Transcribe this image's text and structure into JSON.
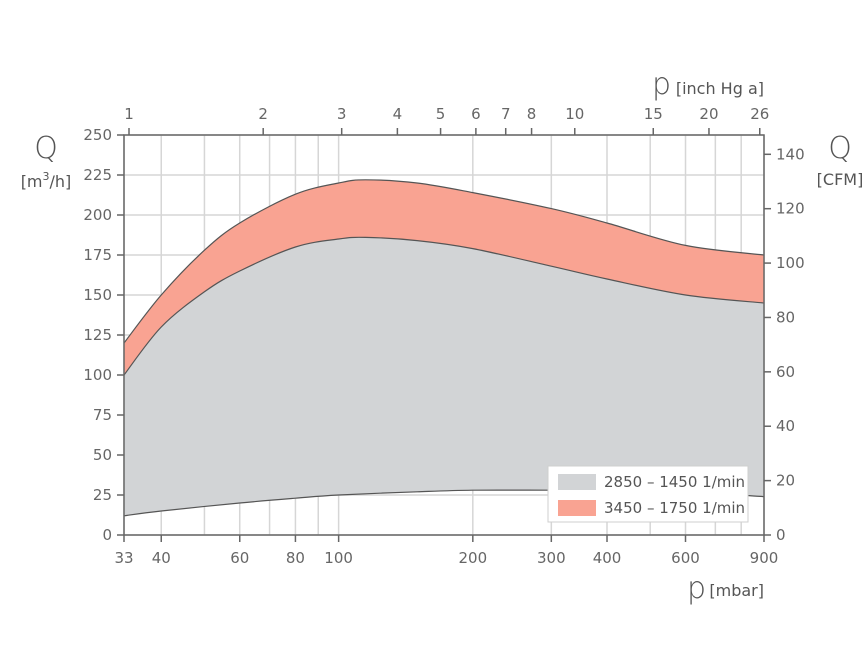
{
  "chart_data": {
    "type": "area",
    "x_axis_bottom": {
      "symbol": "p",
      "unit": "[mbar]",
      "scale": "log",
      "range": [
        33,
        900
      ],
      "ticks": [
        "33",
        "40",
        "60",
        "80",
        "100",
        "200",
        "300",
        "400",
        "600",
        "900"
      ],
      "gridlines": [
        33,
        40,
        50,
        60,
        70,
        80,
        90,
        100,
        200,
        300,
        400,
        500,
        600,
        700,
        800,
        900
      ]
    },
    "x_axis_top": {
      "symbol": "p",
      "unit": "[inch Hg a]",
      "ticks": [
        "1",
        "2",
        "3",
        "4",
        "5",
        "6",
        "7",
        "8",
        "10",
        "15",
        "20",
        "26"
      ]
    },
    "y_axis_left": {
      "symbol": "Q",
      "unit_prefix": "[m",
      "unit_sup": "3",
      "unit_suffix": "/h]",
      "range": [
        0,
        250
      ],
      "ticks": [
        "0",
        "25",
        "50",
        "75",
        "100",
        "125",
        "150",
        "175",
        "200",
        "225",
        "250"
      ]
    },
    "y_axis_right": {
      "symbol": "Q",
      "unit": "[CFM]",
      "range": [
        0,
        147.1
      ],
      "ticks": [
        "0",
        "20",
        "40",
        "60",
        "80",
        "100",
        "120",
        "140"
      ]
    },
    "grid": true,
    "legend_position": "bottom-right",
    "series": [
      {
        "name": "2850 – 1450 1/min",
        "color": "#d2d4d6",
        "upper": [
          [
            33,
            100
          ],
          [
            40,
            130
          ],
          [
            50,
            152
          ],
          [
            60,
            165
          ],
          [
            80,
            180
          ],
          [
            100,
            185
          ],
          [
            115,
            186
          ],
          [
            150,
            184
          ],
          [
            200,
            179
          ],
          [
            300,
            168
          ],
          [
            400,
            160
          ],
          [
            600,
            150
          ],
          [
            900,
            145
          ]
        ],
        "lower": [
          [
            33,
            12
          ],
          [
            40,
            15
          ],
          [
            60,
            20
          ],
          [
            80,
            23
          ],
          [
            100,
            25
          ],
          [
            150,
            27
          ],
          [
            200,
            28
          ],
          [
            300,
            28
          ],
          [
            400,
            28
          ],
          [
            600,
            27
          ],
          [
            900,
            24
          ]
        ]
      },
      {
        "name": "3450 – 1750 1/min",
        "color": "#f9a392",
        "upper": [
          [
            33,
            120
          ],
          [
            40,
            150
          ],
          [
            50,
            178
          ],
          [
            60,
            195
          ],
          [
            80,
            213
          ],
          [
            100,
            220
          ],
          [
            115,
            222
          ],
          [
            150,
            220
          ],
          [
            200,
            214
          ],
          [
            300,
            204
          ],
          [
            400,
            195
          ],
          [
            600,
            181
          ],
          [
            900,
            175
          ]
        ],
        "lower": [
          [
            33,
            100
          ],
          [
            40,
            130
          ],
          [
            50,
            152
          ],
          [
            60,
            165
          ],
          [
            80,
            180
          ],
          [
            100,
            185
          ],
          [
            115,
            186
          ],
          [
            150,
            184
          ],
          [
            200,
            179
          ],
          [
            300,
            168
          ],
          [
            400,
            160
          ],
          [
            600,
            150
          ],
          [
            900,
            145
          ]
        ]
      }
    ]
  }
}
